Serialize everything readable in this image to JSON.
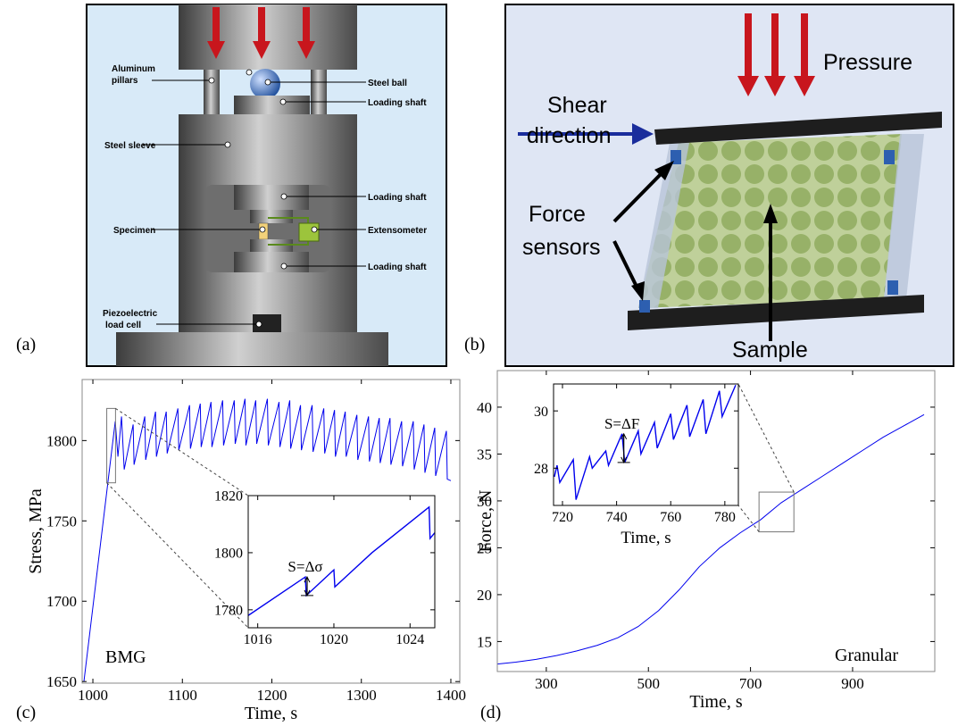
{
  "panel_labels": [
    "(a)",
    "(b)",
    "(c)",
    "(d)"
  ],
  "diagram_a": {
    "labels": [
      [
        "Aluminum",
        "pillars"
      ],
      [
        "Steel ball"
      ],
      [
        "Loading shaft"
      ],
      [
        "Steel sleeve"
      ],
      [
        "Loading shaft"
      ],
      [
        "Specimen"
      ],
      [
        "Extensometer"
      ],
      [
        "Loading shaft"
      ],
      [
        "Piezoelectric",
        "load cell"
      ]
    ]
  },
  "diagram_b": {
    "labels": [
      [
        "Pressure"
      ],
      [
        "Shear",
        "direction"
      ],
      [
        "Force",
        "sensors"
      ],
      [
        "Sample"
      ]
    ]
  },
  "chart_data": [
    {
      "type": "line",
      "x_label": "Time, s",
      "y_label": "Stress, MPa",
      "annotation": "BMG",
      "xlim": [
        988,
        1410
      ],
      "ylim": [
        1649,
        1838
      ],
      "xticks": [
        1000,
        1100,
        1200,
        1300,
        1400
      ],
      "yticks": [
        1650,
        1700,
        1750,
        1800
      ],
      "series": [
        {
          "color": "#0000ee",
          "x": [
            990,
            1025,
            1028,
            1032,
            1035,
            1045,
            1046,
            1058,
            1059,
            1070,
            1071,
            1082,
            1083,
            1095,
            1096,
            1108,
            1109,
            1120,
            1121,
            1132,
            1133,
            1145,
            1146,
            1158,
            1159,
            1170,
            1171,
            1182,
            1183,
            1195,
            1196,
            1208,
            1209,
            1220,
            1221,
            1232,
            1233,
            1245,
            1246,
            1258,
            1259,
            1270,
            1271,
            1282,
            1283,
            1295,
            1296,
            1308,
            1309,
            1320,
            1321,
            1332,
            1333,
            1345,
            1346,
            1358,
            1359,
            1370,
            1371,
            1382,
            1383,
            1395,
            1396,
            1400
          ],
          "values": [
            1650,
            1812,
            1790,
            1815,
            1782,
            1810,
            1785,
            1815,
            1788,
            1818,
            1790,
            1818,
            1792,
            1820,
            1794,
            1822,
            1795,
            1823,
            1796,
            1824,
            1796,
            1825,
            1797,
            1825,
            1798,
            1826,
            1797,
            1825,
            1798,
            1826,
            1797,
            1824,
            1796,
            1825,
            1795,
            1822,
            1794,
            1822,
            1793,
            1820,
            1792,
            1819,
            1790,
            1818,
            1790,
            1816,
            1788,
            1815,
            1787,
            1814,
            1786,
            1814,
            1785,
            1812,
            1784,
            1812,
            1782,
            1810,
            1780,
            1808,
            1778,
            1806,
            1776,
            1775
          ]
        }
      ],
      "inset": {
        "annotation": "S=Δσ",
        "xlim": [
          1015.5,
          1025.3
        ],
        "ylim": [
          1773.7,
          1820
        ],
        "xticks": [
          1016,
          1020,
          1024
        ],
        "yticks": [
          1780,
          1800,
          1820
        ],
        "series": [
          {
            "color": "#0000ee",
            "x": [
              1015.5,
              1018.5,
              1018.55,
              1020,
              1020.05,
              1022,
              1025,
              1025.05,
              1025.3
            ],
            "values": [
              1778,
              1791.5,
              1785,
              1794,
              1788,
              1800,
              1816,
              1805,
              1807
            ]
          }
        ]
      }
    },
    {
      "type": "line",
      "x_label": "Time, s",
      "y_label": "Force, N",
      "annotation": "Granular",
      "xlim": [
        204,
        1061
      ],
      "ylim": [
        11.8,
        43.9
      ],
      "xticks": [
        300,
        500,
        700,
        900
      ],
      "yticks": [
        15,
        20,
        25,
        30,
        35,
        40
      ],
      "series": [
        {
          "color": "#0000ee",
          "x": [
            204,
            240,
            280,
            320,
            360,
            400,
            440,
            480,
            520,
            560,
            600,
            640,
            680,
            720,
            760,
            800,
            840,
            880,
            920,
            960,
            1000,
            1040
          ],
          "values": [
            12.6,
            12.8,
            13.1,
            13.5,
            14.0,
            14.6,
            15.4,
            16.6,
            18.3,
            20.5,
            23.0,
            25.0,
            26.6,
            28.0,
            29.8,
            31.2,
            32.6,
            34.0,
            35.4,
            36.8,
            38.0,
            39.2
          ]
        }
      ],
      "inset": {
        "annotation": "S=ΔF",
        "x_label": "Time, s",
        "xlim": [
          716.7,
          785
        ],
        "ylim": [
          26.7,
          30.94
        ],
        "xticks": [
          720,
          740,
          760,
          780
        ],
        "yticks": [
          28,
          30
        ],
        "series": [
          {
            "color": "#0000ee",
            "x": [
              717,
              718,
              719,
              724,
              725,
              730,
              731,
              736,
              737,
              742,
              743,
              748,
              749,
              754,
              755,
              760,
              761,
              766,
              767,
              772,
              773,
              778,
              779,
              784
            ],
            "values": [
              27.7,
              28.1,
              27.5,
              28.3,
              26.9,
              28.4,
              28.0,
              28.6,
              28.1,
              29.2,
              28.2,
              29.3,
              28.5,
              29.6,
              28.7,
              29.9,
              29.0,
              30.2,
              29.1,
              30.4,
              29.2,
              30.7,
              29.8,
              30.9
            ]
          }
        ]
      }
    }
  ]
}
